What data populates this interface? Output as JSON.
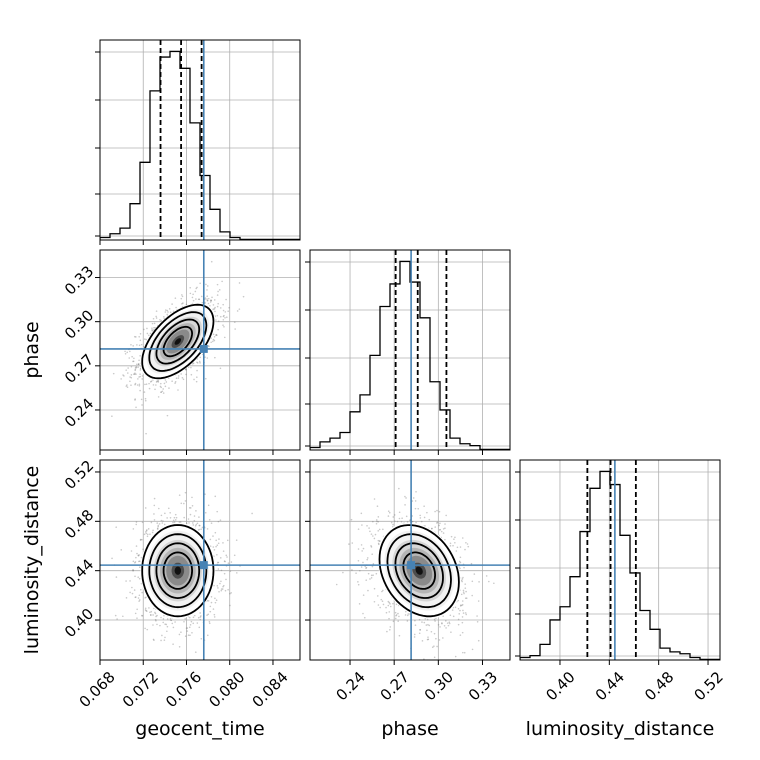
{
  "chart_data": {
    "type": "scatter",
    "parameters": [
      "geocent_time",
      "phase",
      "luminosity_distance"
    ],
    "truth_color": "#4682b4",
    "truths": {
      "geocent_time": 0.0776,
      "phase": 0.2815,
      "luminosity_distance": 0.4445
    },
    "axis_ranges": {
      "geocent_time": [
        0.068,
        0.0865
      ],
      "phase": [
        0.2128,
        0.3487
      ],
      "luminosity_distance": [
        0.3676,
        0.5297
      ]
    },
    "ticks": {
      "geocent_time": [
        "0.068",
        "0.072",
        "0.076",
        "0.080",
        "0.084"
      ],
      "phase": [
        "0.24",
        "0.27",
        "0.30",
        "0.33"
      ],
      "luminosity_distance": [
        "0.40",
        "0.44",
        "0.48",
        "0.52"
      ]
    },
    "quantiles": {
      "geocent_time": [
        0.0736,
        0.0755,
        0.0774
      ],
      "phase": [
        0.271,
        0.286,
        0.3055
      ],
      "luminosity_distance": [
        0.4222,
        0.441,
        0.4615
      ]
    },
    "histograms": {
      "geocent_time": [
        0.01,
        0.03,
        0.06,
        0.19,
        0.41,
        0.79,
        0.97,
        1.0,
        0.91,
        0.62,
        0.34,
        0.16,
        0.04,
        0.01,
        0,
        0,
        0,
        0,
        0,
        0
      ],
      "phase": [
        0.01,
        0.04,
        0.06,
        0.09,
        0.2,
        0.29,
        0.5,
        0.76,
        0.88,
        1.0,
        0.89,
        0.7,
        0.36,
        0.21,
        0.06,
        0.03,
        0.02,
        0,
        0,
        0
      ],
      "luminosity_distance": [
        0.01,
        0.02,
        0.08,
        0.21,
        0.28,
        0.44,
        0.68,
        0.91,
        1.0,
        0.93,
        0.66,
        0.46,
        0.26,
        0.16,
        0.06,
        0.04,
        0.03,
        0.01,
        0,
        0
      ]
    },
    "pairs": [
      {
        "x": "geocent_time",
        "y": "phase",
        "mean": [
          0.0752,
          0.2865
        ],
        "sd": [
          0.00165,
          0.0125
        ],
        "rho": 0.55
      },
      {
        "x": "geocent_time",
        "y": "luminosity_distance",
        "mean": [
          0.0752,
          0.44
        ],
        "sd": [
          0.00165,
          0.0185
        ],
        "rho": 0.0
      },
      {
        "x": "phase",
        "y": "luminosity_distance",
        "mean": [
          0.287,
          0.44
        ],
        "sd": [
          0.0135,
          0.0185
        ],
        "rho": -0.25
      }
    ]
  }
}
